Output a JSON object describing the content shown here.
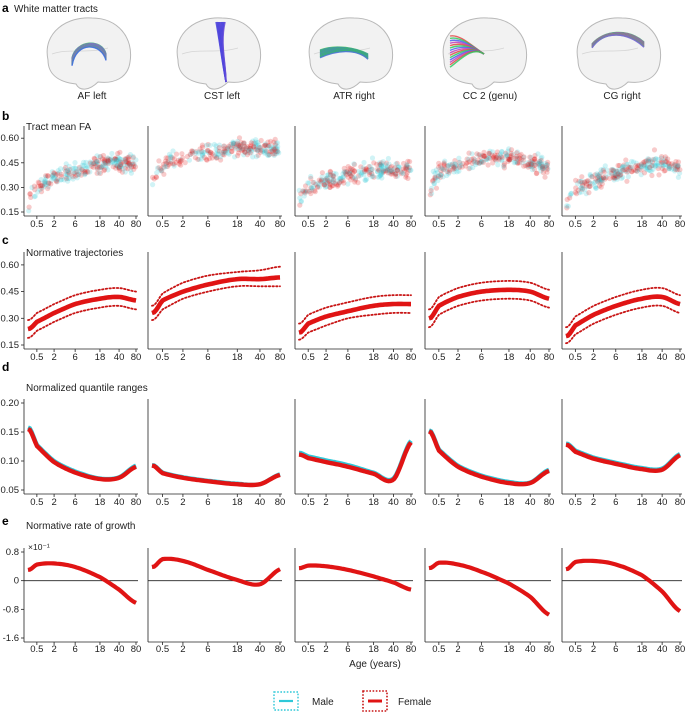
{
  "panels": {
    "a": {
      "letter": "a",
      "title": "White matter tracts"
    },
    "b": {
      "letter": "b",
      "title": "Tract mean FA"
    },
    "c": {
      "letter": "c",
      "title": "Normative trajectories"
    },
    "d": {
      "letter": "d",
      "title": "Normalized quantile ranges"
    },
    "e": {
      "letter": "e",
      "title": "Normative rate of growth",
      "exponent_label": "×10⁻¹"
    }
  },
  "tracts": [
    {
      "name": "AF left",
      "colors": [
        "#3cd04c",
        "#4466ee",
        "#d050d0"
      ]
    },
    {
      "name": "CST left",
      "colors": [
        "#3a3fe0",
        "#6a4fd8"
      ]
    },
    {
      "name": "ATR right",
      "colors": [
        "#30d040",
        "#5070e0"
      ]
    },
    {
      "name": "CC 2 (genu)",
      "colors": [
        "#e04848",
        "#30c860",
        "#4a60f0",
        "#c040c0"
      ]
    },
    {
      "name": "CG right",
      "colors": [
        "#33cc44",
        "#8060e0",
        "#d050a0"
      ]
    }
  ],
  "x_axis": {
    "title": "Age (years)",
    "tick_labels": [
      "0.5",
      "2",
      "6",
      "18",
      "40",
      "80"
    ],
    "tick_values": [
      0.5,
      2,
      6,
      18,
      40,
      80
    ],
    "scale": "log(age + 1)"
  },
  "legend": {
    "items": [
      {
        "label": "Male",
        "color": "#2ec8d8",
        "border_color": "#2ec8d8"
      },
      {
        "label": "Female",
        "color": "#e01414",
        "border_color": "#c81414"
      }
    ]
  },
  "colors": {
    "male": "#2ec8d8",
    "female": "#e01414",
    "zero_line": "#222222"
  },
  "chart_data": [
    {
      "panel": "b",
      "type": "scatter",
      "title": "Tract mean FA",
      "ylim": [
        0.15,
        0.65
      ],
      "yticks": [
        "0.15",
        "0.30",
        "0.45",
        "0.60"
      ],
      "ytick_values": [
        0.15,
        0.3,
        0.45,
        0.6
      ],
      "series": [
        {
          "tract": "AF left",
          "x": [
            0.1,
            0.3,
            0.5,
            1,
            2,
            3,
            4,
            6,
            8,
            12,
            18,
            25,
            30,
            40,
            50,
            60,
            80
          ],
          "y": [
            0.21,
            0.27,
            0.3,
            0.33,
            0.35,
            0.37,
            0.38,
            0.4,
            0.41,
            0.43,
            0.45,
            0.46,
            0.46,
            0.45,
            0.45,
            0.44,
            0.43
          ]
        },
        {
          "tract": "CST left",
          "x": [
            0.1,
            0.3,
            0.5,
            1,
            2,
            3,
            4,
            6,
            8,
            12,
            18,
            25,
            30,
            40,
            50,
            60,
            80
          ],
          "y": [
            0.35,
            0.4,
            0.43,
            0.46,
            0.48,
            0.49,
            0.5,
            0.51,
            0.52,
            0.53,
            0.54,
            0.54,
            0.54,
            0.54,
            0.54,
            0.54,
            0.53
          ]
        },
        {
          "tract": "ATR right",
          "x": [
            0.1,
            0.3,
            0.5,
            1,
            2,
            3,
            4,
            6,
            8,
            12,
            18,
            25,
            30,
            40,
            50,
            60,
            80
          ],
          "y": [
            0.23,
            0.28,
            0.3,
            0.32,
            0.34,
            0.35,
            0.36,
            0.37,
            0.38,
            0.39,
            0.4,
            0.41,
            0.41,
            0.41,
            0.41,
            0.41,
            0.4
          ]
        },
        {
          "tract": "CC 2 (genu)",
          "x": [
            0.1,
            0.3,
            0.5,
            1,
            2,
            3,
            4,
            6,
            8,
            12,
            18,
            25,
            30,
            40,
            50,
            60,
            80
          ],
          "y": [
            0.3,
            0.36,
            0.39,
            0.42,
            0.44,
            0.45,
            0.46,
            0.47,
            0.48,
            0.48,
            0.48,
            0.47,
            0.47,
            0.46,
            0.45,
            0.44,
            0.42
          ]
        },
        {
          "tract": "CG right",
          "x": [
            0.1,
            0.3,
            0.5,
            1,
            2,
            3,
            4,
            6,
            8,
            12,
            18,
            25,
            30,
            40,
            50,
            60,
            80
          ],
          "y": [
            0.2,
            0.26,
            0.29,
            0.32,
            0.34,
            0.36,
            0.37,
            0.39,
            0.4,
            0.42,
            0.43,
            0.44,
            0.44,
            0.44,
            0.43,
            0.42,
            0.41
          ]
        }
      ]
    },
    {
      "panel": "c",
      "type": "line",
      "title": "Normative trajectories",
      "ylim": [
        0.15,
        0.65
      ],
      "yticks": [
        "0.15",
        "0.30",
        "0.45",
        "0.60"
      ],
      "ytick_values": [
        0.15,
        0.3,
        0.45,
        0.6
      ],
      "x": [
        0.1,
        0.5,
        2,
        6,
        18,
        40,
        80
      ],
      "series": [
        {
          "tract": "AF left",
          "median": [
            0.24,
            0.28,
            0.33,
            0.38,
            0.41,
            0.42,
            0.4
          ],
          "upper": [
            0.29,
            0.33,
            0.38,
            0.43,
            0.46,
            0.47,
            0.45
          ],
          "lower": [
            0.19,
            0.23,
            0.28,
            0.33,
            0.36,
            0.37,
            0.35
          ]
        },
        {
          "tract": "CST left",
          "median": [
            0.33,
            0.4,
            0.45,
            0.49,
            0.52,
            0.52,
            0.53
          ],
          "upper": [
            0.37,
            0.44,
            0.5,
            0.54,
            0.56,
            0.57,
            0.59
          ],
          "lower": [
            0.29,
            0.35,
            0.41,
            0.45,
            0.48,
            0.48,
            0.48
          ]
        },
        {
          "tract": "ATR right",
          "median": [
            0.22,
            0.27,
            0.31,
            0.34,
            0.37,
            0.38,
            0.38
          ],
          "upper": [
            0.27,
            0.32,
            0.36,
            0.39,
            0.42,
            0.43,
            0.43
          ],
          "lower": [
            0.18,
            0.22,
            0.26,
            0.3,
            0.32,
            0.33,
            0.33
          ]
        },
        {
          "tract": "CC 2 (genu)",
          "median": [
            0.3,
            0.37,
            0.42,
            0.45,
            0.46,
            0.45,
            0.41
          ],
          "upper": [
            0.35,
            0.42,
            0.47,
            0.5,
            0.51,
            0.5,
            0.46
          ],
          "lower": [
            0.25,
            0.32,
            0.37,
            0.4,
            0.41,
            0.4,
            0.36
          ]
        },
        {
          "tract": "CG right",
          "median": [
            0.2,
            0.26,
            0.32,
            0.37,
            0.41,
            0.42,
            0.38
          ],
          "upper": [
            0.25,
            0.31,
            0.37,
            0.42,
            0.46,
            0.47,
            0.43
          ],
          "lower": [
            0.16,
            0.21,
            0.27,
            0.32,
            0.36,
            0.37,
            0.33
          ]
        }
      ]
    },
    {
      "panel": "d",
      "type": "line",
      "title": "Normalized quantile ranges",
      "ylim": [
        0.05,
        0.2
      ],
      "yticks": [
        "0.05",
        "0.10",
        "0.15",
        "0.20"
      ],
      "ytick_values": [
        0.05,
        0.1,
        0.15,
        0.2
      ],
      "x": [
        0.1,
        0.5,
        2,
        6,
        18,
        40,
        80
      ],
      "series": [
        {
          "tract": "AF left",
          "male": [
            0.158,
            0.128,
            0.1,
            0.082,
            0.07,
            0.072,
            0.092
          ],
          "female": [
            0.155,
            0.126,
            0.098,
            0.08,
            0.069,
            0.071,
            0.09
          ]
        },
        {
          "tract": "CST left",
          "male": [
            0.093,
            0.08,
            0.072,
            0.066,
            0.061,
            0.06,
            0.077
          ],
          "female": [
            0.092,
            0.079,
            0.071,
            0.065,
            0.06,
            0.06,
            0.076
          ]
        },
        {
          "tract": "ATR right",
          "male": [
            0.114,
            0.108,
            0.101,
            0.093,
            0.08,
            0.07,
            0.135
          ],
          "female": [
            0.111,
            0.105,
            0.098,
            0.09,
            0.078,
            0.068,
            0.132
          ]
        },
        {
          "tract": "CC 2 (genu)",
          "male": [
            0.153,
            0.12,
            0.092,
            0.075,
            0.064,
            0.063,
            0.085
          ],
          "female": [
            0.151,
            0.118,
            0.09,
            0.073,
            0.062,
            0.062,
            0.083
          ]
        },
        {
          "tract": "CG right",
          "male": [
            0.13,
            0.118,
            0.106,
            0.097,
            0.088,
            0.087,
            0.112
          ],
          "female": [
            0.128,
            0.116,
            0.104,
            0.095,
            0.086,
            0.085,
            0.11
          ]
        }
      ]
    },
    {
      "panel": "e",
      "type": "line",
      "title": "Normative rate of growth",
      "ylim": [
        -1.6,
        0.8
      ],
      "yticks": [
        "0.8",
        "0",
        "-0.8",
        "-1.6"
      ],
      "ytick_values": [
        0.8,
        0,
        -0.8,
        -1.6
      ],
      "x": [
        0.1,
        0.5,
        2,
        6,
        18,
        40,
        80
      ],
      "series": [
        {
          "tract": "AF left",
          "values": [
            0.3,
            0.45,
            0.48,
            0.38,
            0.1,
            -0.25,
            -0.62
          ]
        },
        {
          "tract": "CST left",
          "values": [
            0.38,
            0.6,
            0.55,
            0.3,
            0.02,
            -0.1,
            0.32
          ]
        },
        {
          "tract": "ATR right",
          "values": [
            0.35,
            0.42,
            0.4,
            0.3,
            0.12,
            -0.05,
            -0.25
          ]
        },
        {
          "tract": "CC 2 (genu)",
          "values": [
            0.35,
            0.5,
            0.45,
            0.25,
            -0.08,
            -0.45,
            -0.95
          ]
        },
        {
          "tract": "CG right",
          "values": [
            0.32,
            0.52,
            0.55,
            0.45,
            0.15,
            -0.3,
            -0.85
          ]
        }
      ]
    }
  ]
}
